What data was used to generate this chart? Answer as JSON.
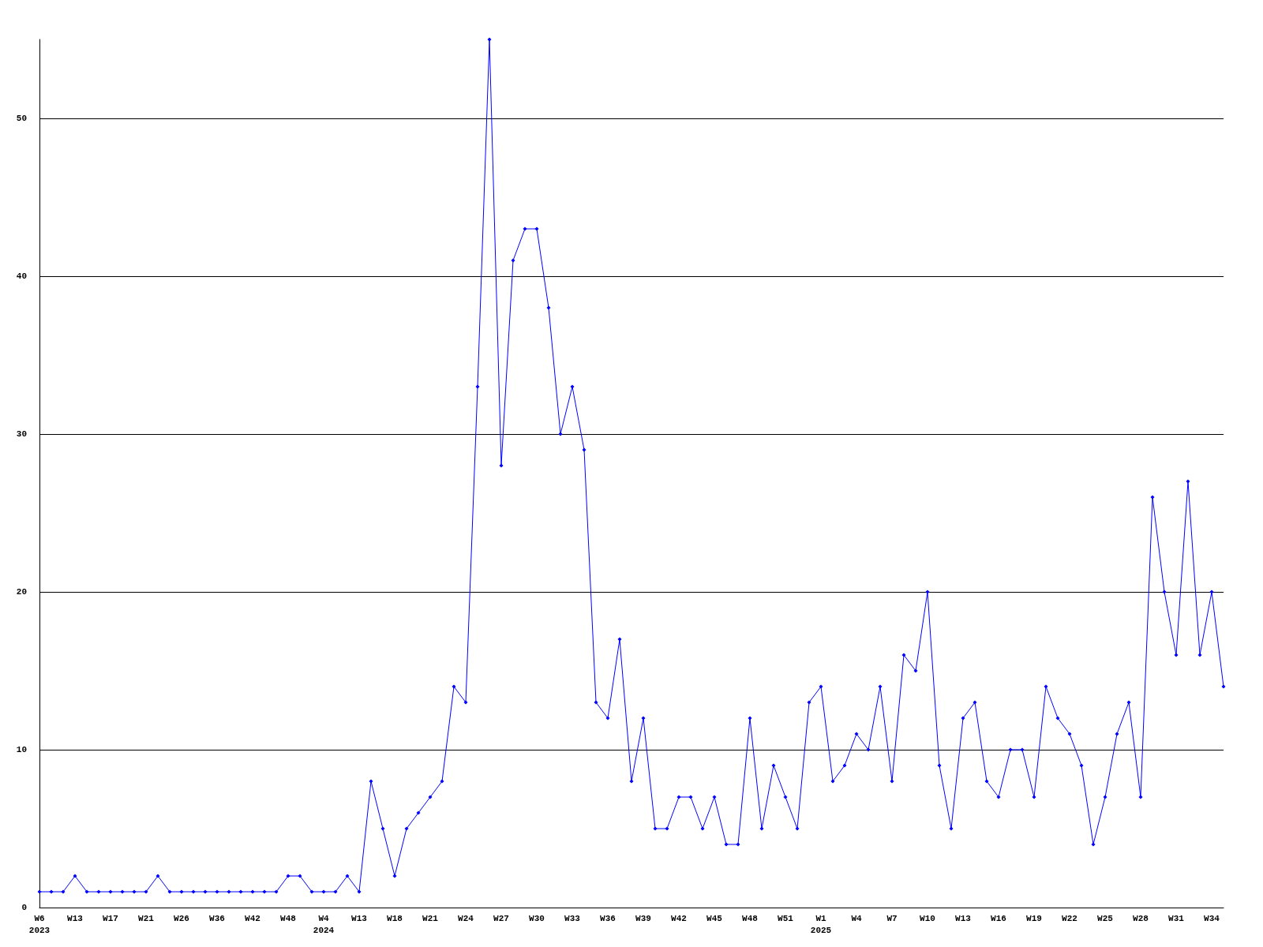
{
  "chart_data": {
    "type": "line",
    "categories": [
      "W6\n2023",
      null,
      null,
      "W13",
      null,
      null,
      "W17",
      null,
      null,
      "W21",
      null,
      null,
      "W26",
      null,
      null,
      "W36",
      null,
      null,
      "W42",
      null,
      null,
      "W48",
      null,
      null,
      "W4\n2024",
      null,
      null,
      "W13",
      null,
      null,
      "W18",
      null,
      null,
      "W21",
      null,
      null,
      "W24",
      null,
      null,
      "W27",
      null,
      null,
      "W30",
      null,
      null,
      "W33",
      null,
      null,
      "W36",
      null,
      null,
      "W39",
      null,
      null,
      "W42",
      null,
      null,
      "W45",
      null,
      null,
      "W48",
      null,
      null,
      "W51",
      null,
      null,
      "W1\n2025",
      null,
      null,
      "W4",
      null,
      null,
      "W7",
      null,
      null,
      "W10",
      null,
      null,
      "W13",
      null,
      null,
      "W16",
      null,
      null,
      "W19",
      null,
      null,
      "W22",
      null,
      null,
      "W25",
      null,
      null,
      "W28",
      null,
      null,
      "W31",
      null,
      null,
      "W34",
      null
    ],
    "series": [
      {
        "color": "#0000ff",
        "values": [
          1,
          1,
          1,
          2,
          1,
          1,
          1,
          1,
          1,
          1,
          2,
          1,
          1,
          1,
          1,
          1,
          1,
          1,
          1,
          1,
          1,
          2,
          2,
          1,
          1,
          1,
          2,
          1,
          8,
          5,
          2,
          5,
          6,
          7,
          8,
          14,
          13,
          33,
          55,
          28,
          41,
          43,
          43,
          38,
          30,
          33,
          29,
          13,
          12,
          17,
          8,
          12,
          5,
          5,
          7,
          7,
          5,
          7,
          4,
          4,
          12,
          5,
          9,
          7,
          5,
          13,
          14,
          8,
          9,
          11,
          10,
          14,
          8,
          16,
          15,
          20,
          9,
          5,
          12,
          13,
          8,
          7,
          10,
          10,
          7,
          14,
          12,
          11,
          9,
          4,
          7,
          11,
          13,
          7,
          26,
          20,
          16,
          27,
          16,
          20,
          14
        ]
      }
    ],
    "ylim": [
      0,
      55
    ],
    "yticks": [
      0,
      10,
      20,
      30,
      40,
      50
    ],
    "grid": "y",
    "marker": "diamond",
    "line_style": "solid"
  }
}
